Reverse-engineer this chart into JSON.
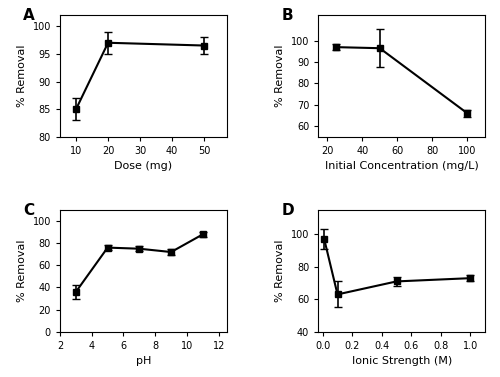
{
  "A": {
    "x": [
      10,
      20,
      50
    ],
    "y": [
      85,
      97,
      96.5
    ],
    "yerr": [
      2.0,
      2.0,
      1.5
    ],
    "xlabel": "Dose (mg)",
    "ylabel": "% Removal",
    "xlim": [
      5,
      57
    ],
    "ylim": [
      80,
      102
    ],
    "yticks": [
      80,
      85,
      90,
      95,
      100
    ],
    "xticks": [
      10,
      20,
      30,
      40,
      50
    ],
    "label": "A"
  },
  "B": {
    "x": [
      25,
      50,
      100
    ],
    "y": [
      97,
      96.5,
      66
    ],
    "yerr": [
      1.5,
      9.0,
      1.5
    ],
    "xlabel": "Initial Concentration (mg/L)",
    "ylabel": "% Removal",
    "xlim": [
      15,
      110
    ],
    "ylim": [
      55,
      112
    ],
    "yticks": [
      60,
      70,
      80,
      90,
      100
    ],
    "xticks": [
      20,
      40,
      60,
      80,
      100
    ],
    "label": "B"
  },
  "C": {
    "x": [
      3,
      5,
      7,
      9,
      11
    ],
    "y": [
      36,
      76,
      75,
      72,
      88
    ],
    "yerr": [
      6.0,
      2.5,
      2.5,
      2.5,
      2.5
    ],
    "xlabel": "pH",
    "ylabel": "% Removal",
    "xlim": [
      2,
      12.5
    ],
    "ylim": [
      0,
      110
    ],
    "yticks": [
      0,
      20,
      40,
      60,
      80,
      100
    ],
    "xticks": [
      2,
      4,
      6,
      8,
      10,
      12
    ],
    "label": "C"
  },
  "D": {
    "x": [
      0.01,
      0.1,
      0.5,
      1.0
    ],
    "y": [
      97,
      63,
      71,
      73
    ],
    "yerr": [
      6.0,
      8.0,
      3.0,
      2.0
    ],
    "xlabel": "Ionic Strength (M)",
    "ylabel": "% Removal",
    "xlim": [
      -0.03,
      1.1
    ],
    "ylim": [
      40,
      115
    ],
    "yticks": [
      40,
      60,
      80,
      100
    ],
    "xticks": [
      0.0,
      0.2,
      0.4,
      0.6,
      0.8,
      1.0
    ],
    "label": "D"
  },
  "marker": "s",
  "markersize": 5,
  "linewidth": 1.5,
  "color": "black",
  "capsize": 3,
  "elinewidth": 1.2
}
